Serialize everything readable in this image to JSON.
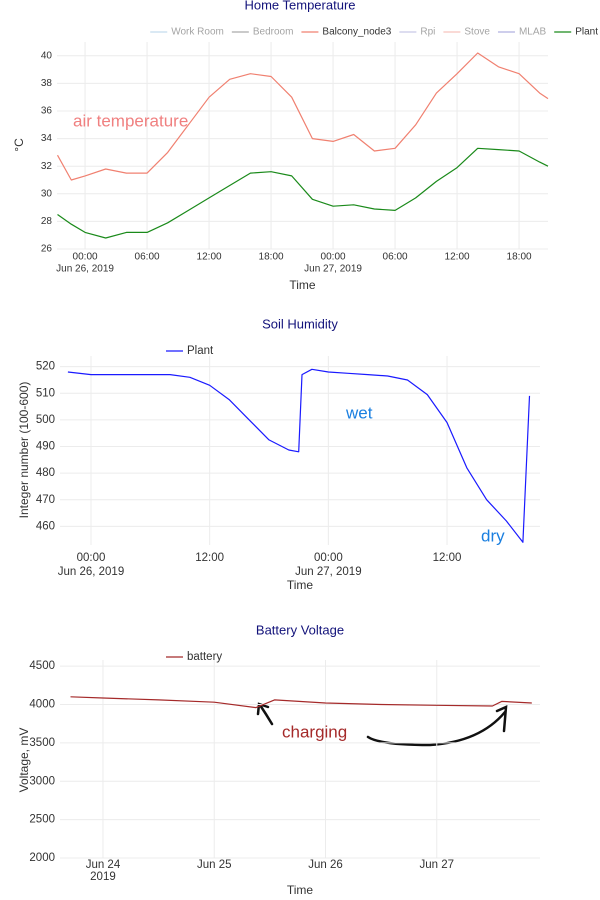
{
  "chart_data": [
    {
      "type": "line",
      "title": "Home Temperature",
      "x_label": "Time",
      "y_label": "°C",
      "x": [
        "2019-06-25T21:20",
        "2019-06-25T22:40",
        "2019-06-26T00:00",
        "2019-06-26T02:00",
        "2019-06-26T04:00",
        "2019-06-26T06:00",
        "2019-06-26T08:00",
        "2019-06-26T10:00",
        "2019-06-26T12:00",
        "2019-06-26T14:00",
        "2019-06-26T16:00",
        "2019-06-26T18:00",
        "2019-06-26T20:00",
        "2019-06-26T22:00",
        "2019-06-27T00:00",
        "2019-06-27T02:00",
        "2019-06-27T04:00",
        "2019-06-27T06:00",
        "2019-06-27T08:00",
        "2019-06-27T10:00",
        "2019-06-27T12:00",
        "2019-06-27T14:00",
        "2019-06-27T16:00",
        "2019-06-27T18:00",
        "2019-06-27T20:00",
        "2019-06-27T20:48"
      ],
      "xlim": [
        "2019-06-25T21:17",
        "2019-06-27T20:48"
      ],
      "xticks": [
        {
          "value": "2019-06-26T00:00",
          "label": [
            "00:00",
            "Jun 26, 2019"
          ]
        },
        {
          "value": "2019-06-26T06:00",
          "label": "06:00"
        },
        {
          "value": "2019-06-26T12:00",
          "label": "12:00"
        },
        {
          "value": "2019-06-26T18:00",
          "label": "18:00"
        },
        {
          "value": "2019-06-27T00:00",
          "label": [
            "00:00",
            "Jun 27, 2019"
          ]
        },
        {
          "value": "2019-06-27T06:00",
          "label": "06:00"
        },
        {
          "value": "2019-06-27T12:00",
          "label": "12:00"
        },
        {
          "value": "2019-06-27T18:00",
          "label": "18:00"
        }
      ],
      "ylim": [
        26,
        41
      ],
      "yticks": [
        26,
        28,
        30,
        32,
        34,
        36,
        38,
        40
      ],
      "grid": true,
      "legend": "top right",
      "series": [
        {
          "name": "Work Room",
          "color": "#7fb2d8",
          "visible": false,
          "values": [
            null,
            null,
            null,
            null,
            null,
            null,
            null,
            null,
            null,
            null,
            null,
            null,
            null,
            null,
            null,
            null,
            null,
            null,
            null,
            null,
            null,
            null,
            null,
            null,
            null,
            null
          ]
        },
        {
          "name": "Bedroom",
          "color": "#444444",
          "visible": false,
          "values": [
            null,
            null,
            null,
            null,
            null,
            null,
            null,
            null,
            null,
            null,
            null,
            null,
            null,
            null,
            null,
            null,
            null,
            null,
            null,
            null,
            null,
            null,
            null,
            null,
            null,
            null
          ]
        },
        {
          "name": "Balcony_node3",
          "color": "#f08070",
          "values": [
            32.8,
            31.0,
            31.3,
            31.8,
            31.5,
            31.5,
            33,
            35,
            37,
            38.3,
            38.7,
            38.5,
            37,
            34,
            33.8,
            34.3,
            33.1,
            33.3,
            35,
            37.3,
            38.7,
            40.2,
            39.2,
            38.7,
            37.3,
            36.9
          ]
        },
        {
          "name": "Rpi",
          "color": "#8888cc",
          "visible": false,
          "values": [
            null,
            null,
            null,
            null,
            null,
            null,
            null,
            null,
            null,
            null,
            null,
            null,
            null,
            null,
            null,
            null,
            null,
            null,
            null,
            null,
            null,
            null,
            null,
            null,
            null,
            null
          ]
        },
        {
          "name": "Stove",
          "color": "#f08070",
          "visible": false,
          "values": [
            null,
            null,
            null,
            null,
            null,
            null,
            null,
            null,
            null,
            null,
            null,
            null,
            null,
            null,
            null,
            null,
            null,
            null,
            null,
            null,
            null,
            null,
            null,
            null,
            null,
            null
          ]
        },
        {
          "name": "MLAB",
          "color": "#5555bb",
          "visible": false,
          "values": [
            null,
            null,
            null,
            null,
            null,
            null,
            null,
            null,
            null,
            null,
            null,
            null,
            null,
            null,
            null,
            null,
            null,
            null,
            null,
            null,
            null,
            null,
            null,
            null,
            null,
            null
          ]
        },
        {
          "name": "Plant",
          "color": "#1a8a1a",
          "values": [
            28.5,
            27.8,
            27.2,
            26.8,
            27.2,
            27.2,
            27.9,
            28.8,
            29.7,
            30.6,
            31.5,
            31.6,
            31.3,
            29.6,
            29.1,
            29.2,
            28.9,
            28.8,
            29.7,
            30.9,
            31.9,
            33.3,
            33.2,
            33.1,
            32.3,
            32.0
          ]
        }
      ],
      "annotations": [
        "air temperature"
      ],
      "annotation_color": "#f08080"
    },
    {
      "type": "line",
      "title": "Soil Humidity",
      "x_label": "Time",
      "y_label": "Integer number (100-600)",
      "x": [
        "2019-06-25T21:40",
        "2019-06-26T00:00",
        "2019-06-26T02:00",
        "2019-06-26T04:00",
        "2019-06-26T06:00",
        "2019-06-26T08:00",
        "2019-06-26T10:00",
        "2019-06-26T12:00",
        "2019-06-26T14:00",
        "2019-06-26T16:00",
        "2019-06-26T18:00",
        "2019-06-26T20:00",
        "2019-06-26T21:00",
        "2019-06-26T21:20",
        "2019-06-26T22:20",
        "2019-06-27T00:00",
        "2019-06-27T02:00",
        "2019-06-27T04:00",
        "2019-06-27T06:00",
        "2019-06-27T08:00",
        "2019-06-27T10:00",
        "2019-06-27T12:00",
        "2019-06-27T14:00",
        "2019-06-27T16:00",
        "2019-06-27T18:00",
        "2019-06-27T19:40",
        "2019-06-27T20:20"
      ],
      "xlim": [
        "2019-06-25T20:52",
        "2019-06-27T21:24"
      ],
      "xticks": [
        {
          "value": "2019-06-26T00:00",
          "label": [
            "00:00",
            "Jun 26, 2019"
          ]
        },
        {
          "value": "2019-06-26T12:00",
          "label": "12:00"
        },
        {
          "value": "2019-06-27T00:00",
          "label": [
            "00:00",
            "Jun 27, 2019"
          ]
        },
        {
          "value": "2019-06-27T12:00",
          "label": "12:00"
        }
      ],
      "ylim": [
        453,
        524
      ],
      "yticks": [
        460,
        470,
        480,
        490,
        500,
        510,
        520
      ],
      "grid": true,
      "legend": "top left",
      "series": [
        {
          "name": "Plant",
          "color": "#1a1aff",
          "values": [
            518,
            517,
            517,
            517,
            517,
            517,
            516,
            513,
            507.5,
            500,
            492.5,
            488.7,
            488,
            517,
            519,
            518,
            517.5,
            517,
            516.5,
            515,
            509.5,
            499,
            482,
            470,
            462,
            454,
            509
          ]
        }
      ],
      "annotations": [
        "wet",
        "dry"
      ],
      "annotation_color": "#1a7fe0"
    },
    {
      "type": "line",
      "title": "Battery Voltage",
      "x_label": "Time",
      "y_label": "Voltage, mV",
      "x": [
        "2019-06-23T17:00",
        "2019-06-24T00:00",
        "2019-06-24T12:00",
        "2019-06-25T00:00",
        "2019-06-25T09:00",
        "2019-06-25T13:00",
        "2019-06-26T00:00",
        "2019-06-26T12:00",
        "2019-06-27T00:00",
        "2019-06-27T12:00",
        "2019-06-27T14:00",
        "2019-06-27T20:30"
      ],
      "xlim": [
        "2019-06-23T14:44",
        "2019-06-27T22:16"
      ],
      "xticks": [
        {
          "value": "2019-06-24T00:00",
          "label": [
            "Jun 24",
            "2019"
          ]
        },
        {
          "value": "2019-06-25T00:00",
          "label": "Jun 25"
        },
        {
          "value": "2019-06-26T00:00",
          "label": "Jun 26"
        },
        {
          "value": "2019-06-27T00:00",
          "label": "Jun 27"
        }
      ],
      "ylim": [
        2000,
        4580
      ],
      "yticks": [
        2000,
        2500,
        3000,
        3500,
        4000,
        4500
      ],
      "grid": true,
      "legend": "top left",
      "series": [
        {
          "name": "battery",
          "color": "#a52a2a",
          "values": [
            4100,
            4085,
            4060,
            4030,
            3960,
            4060,
            4020,
            4000,
            3990,
            3980,
            4040,
            4020
          ]
        }
      ],
      "annotations": [
        "charging"
      ],
      "annotation_color": "#a52a2a"
    }
  ]
}
